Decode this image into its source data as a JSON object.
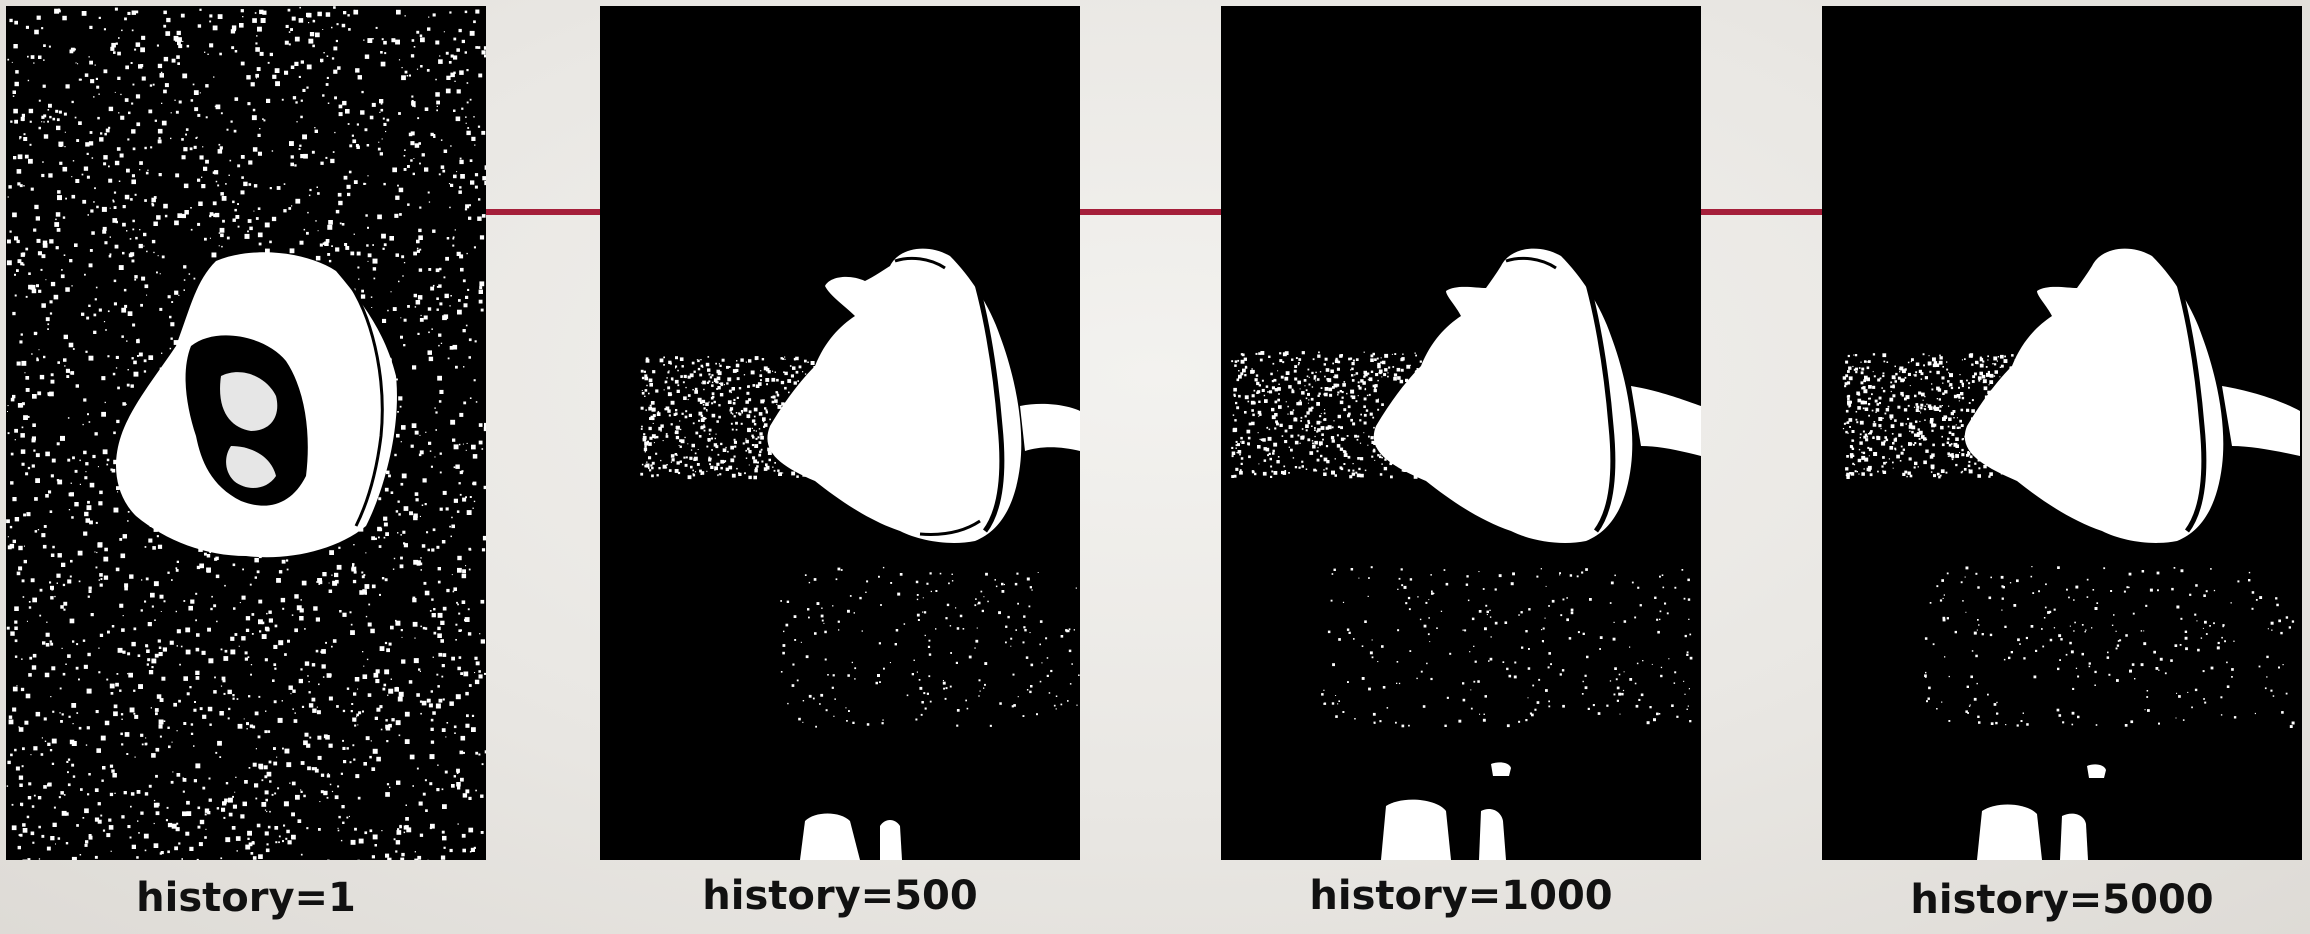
{
  "panels": [
    {
      "caption": "history=1"
    },
    {
      "caption": "history=500"
    },
    {
      "caption": "history=1000"
    },
    {
      "caption": "history=5000"
    }
  ],
  "colors": {
    "background": "#ebe9e5",
    "connector": "#a51f3a",
    "mask_foreground": "#ffffff",
    "mask_background": "#000000"
  }
}
